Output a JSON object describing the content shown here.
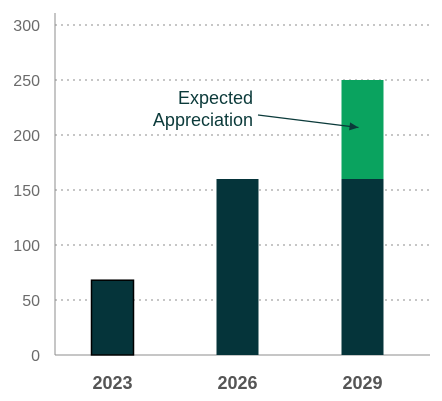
{
  "chart_data": {
    "type": "bar",
    "stacked": true,
    "categories": [
      "2023",
      "2026",
      "2029"
    ],
    "series": [
      {
        "values": [
          68,
          160,
          160
        ],
        "color": "#05343a"
      },
      {
        "values": [
          0,
          0,
          90
        ],
        "color": "#0aa35f"
      }
    ],
    "ylim": [
      0,
      300
    ],
    "yticks": [
      0,
      50,
      100,
      150,
      200,
      250,
      300
    ],
    "grid": true,
    "annotation": {
      "lines": [
        "Expected",
        "Appreciation"
      ],
      "target_category": "2029",
      "target_value": 205,
      "color": "#0b3a3a"
    },
    "axis_color": "#8c8c8c",
    "grid_color": "#8c8c8c"
  }
}
